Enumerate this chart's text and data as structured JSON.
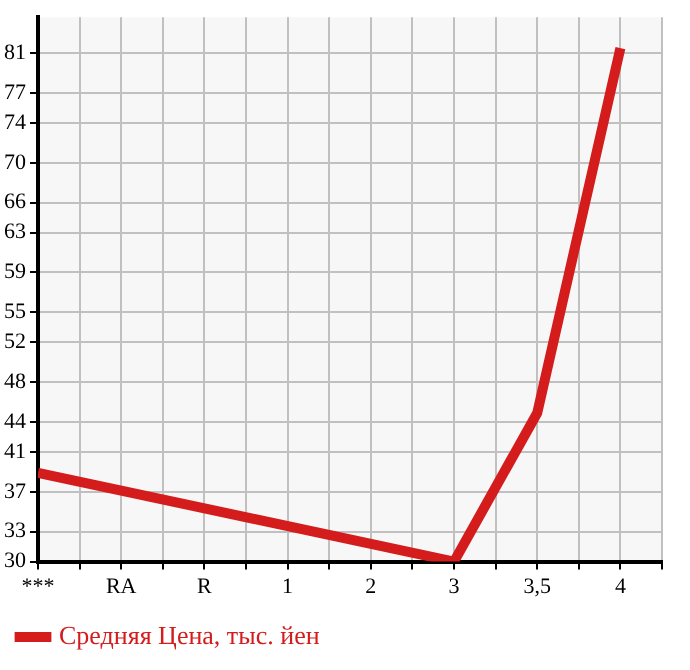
{
  "chart_data": {
    "type": "line",
    "categories": [
      "***",
      "RA",
      "R",
      "1",
      "2",
      "3",
      "3,5",
      "4"
    ],
    "series": [
      {
        "name": "Средняя Цена, тыс. йен",
        "color": "#d41c1c",
        "values": [
          38.9,
          null,
          null,
          null,
          null,
          30,
          44.9,
          81.5
        ]
      }
    ],
    "ylim": [
      30,
      84.6
    ],
    "yticks": [
      30,
      33,
      37,
      41,
      44,
      48,
      52,
      55,
      59,
      63,
      66,
      70,
      74,
      77,
      81
    ],
    "grid": true,
    "legend": "bottom",
    "marker": "none",
    "line_style": "solid"
  }
}
